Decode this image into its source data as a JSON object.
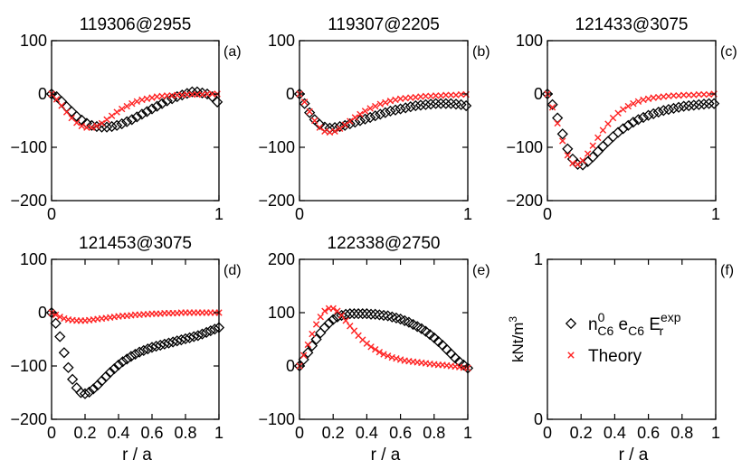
{
  "chart_data": [
    {
      "panel_label": "(a)",
      "title": "119306@2955",
      "type": "scatter",
      "xlim": [
        0,
        1
      ],
      "ylim": [
        -200,
        100
      ],
      "xticks": [
        0,
        1
      ],
      "xtick_labels": [
        "0",
        "1"
      ],
      "yticks": [
        100,
        0,
        -100,
        -200
      ],
      "ytick_labels": [
        "100",
        "0",
        "−100",
        "−200"
      ],
      "xlabel": "",
      "ylabel": "",
      "series": [
        {
          "name": "",
          "marker": "diamond",
          "color": "#000000",
          "x": [
            0,
            0.03,
            0.06,
            0.09,
            0.12,
            0.15,
            0.18,
            0.21,
            0.24,
            0.27,
            0.3,
            0.33,
            0.36,
            0.39,
            0.42,
            0.45,
            0.48,
            0.51,
            0.54,
            0.57,
            0.6,
            0.63,
            0.66,
            0.69,
            0.72,
            0.75,
            0.78,
            0.81,
            0.84,
            0.87,
            0.9,
            0.93,
            0.96,
            0.99
          ],
          "y": [
            0,
            -5,
            -14,
            -24,
            -33,
            -42,
            -49,
            -55,
            -59,
            -61,
            -62,
            -62,
            -61,
            -59,
            -56,
            -52,
            -48,
            -43,
            -38,
            -33,
            -28,
            -23,
            -18,
            -13,
            -9,
            -5,
            -2,
            1,
            4,
            4,
            2,
            0,
            -5,
            -15
          ]
        },
        {
          "name": "",
          "marker": "x",
          "color": "#ff2222",
          "x": [
            0,
            0.03,
            0.06,
            0.09,
            0.12,
            0.15,
            0.18,
            0.21,
            0.24,
            0.27,
            0.3,
            0.33,
            0.36,
            0.39,
            0.42,
            0.45,
            0.48,
            0.51,
            0.54,
            0.57,
            0.6,
            0.63,
            0.66,
            0.69,
            0.72,
            0.75,
            0.78,
            0.81,
            0.84,
            0.87,
            0.9,
            0.93,
            0.96,
            0.99
          ],
          "y": [
            0,
            -10,
            -22,
            -34,
            -45,
            -54,
            -60,
            -63,
            -63,
            -60,
            -55,
            -48,
            -41,
            -34,
            -28,
            -23,
            -18,
            -14,
            -11,
            -9,
            -7,
            -5,
            -4,
            -3,
            -3,
            -2,
            -2,
            -1,
            -1,
            -1,
            -1,
            0,
            0,
            0
          ]
        }
      ]
    },
    {
      "panel_label": "(b)",
      "title": "119307@2205",
      "type": "scatter",
      "xlim": [
        0,
        1
      ],
      "ylim": [
        -200,
        100
      ],
      "xticks": [
        0,
        1
      ],
      "xtick_labels": [
        "0",
        "1"
      ],
      "yticks": [
        100,
        0,
        -100,
        -200
      ],
      "ytick_labels": [
        "100",
        "0",
        "−100",
        "−200"
      ],
      "xlabel": "",
      "ylabel": "",
      "series": [
        {
          "name": "",
          "marker": "diamond",
          "color": "#000000",
          "x": [
            0,
            0.03,
            0.06,
            0.09,
            0.12,
            0.15,
            0.18,
            0.21,
            0.24,
            0.27,
            0.3,
            0.33,
            0.36,
            0.39,
            0.42,
            0.45,
            0.48,
            0.51,
            0.54,
            0.57,
            0.6,
            0.63,
            0.66,
            0.69,
            0.72,
            0.75,
            0.78,
            0.81,
            0.84,
            0.87,
            0.9,
            0.93,
            0.96,
            0.99
          ],
          "y": [
            0,
            -18,
            -35,
            -48,
            -57,
            -62,
            -64,
            -63,
            -61,
            -59,
            -56,
            -53,
            -50,
            -47,
            -44,
            -41,
            -38,
            -35,
            -32,
            -30,
            -28,
            -26,
            -24,
            -22,
            -21,
            -20,
            -19,
            -18,
            -18,
            -18,
            -18,
            -19,
            -20,
            -22
          ]
        },
        {
          "name": "",
          "marker": "x",
          "color": "#ff2222",
          "x": [
            0,
            0.03,
            0.06,
            0.09,
            0.12,
            0.15,
            0.18,
            0.21,
            0.24,
            0.27,
            0.3,
            0.33,
            0.36,
            0.39,
            0.42,
            0.45,
            0.48,
            0.51,
            0.54,
            0.57,
            0.6,
            0.63,
            0.66,
            0.69,
            0.72,
            0.75,
            0.78,
            0.81,
            0.84,
            0.87,
            0.9,
            0.93,
            0.96,
            0.99
          ],
          "y": [
            0,
            -15,
            -33,
            -50,
            -63,
            -70,
            -72,
            -70,
            -65,
            -58,
            -51,
            -44,
            -38,
            -32,
            -27,
            -23,
            -19,
            -16,
            -13,
            -11,
            -9,
            -8,
            -7,
            -6,
            -5,
            -4,
            -4,
            -3,
            -3,
            -2,
            -2,
            -2,
            -1,
            -1
          ]
        }
      ]
    },
    {
      "panel_label": "(c)",
      "title": "121433@3075",
      "type": "scatter",
      "xlim": [
        0,
        1
      ],
      "ylim": [
        -200,
        100
      ],
      "xticks": [
        0,
        1
      ],
      "xtick_labels": [
        "0",
        "1"
      ],
      "yticks": [
        100,
        0,
        -100,
        -200
      ],
      "ytick_labels": [
        "100",
        "0",
        "−100",
        "−200"
      ],
      "xlabel": "",
      "ylabel": "",
      "series": [
        {
          "name": "",
          "marker": "diamond",
          "color": "#000000",
          "x": [
            0,
            0.03,
            0.06,
            0.09,
            0.12,
            0.15,
            0.18,
            0.21,
            0.24,
            0.27,
            0.3,
            0.33,
            0.36,
            0.39,
            0.42,
            0.45,
            0.48,
            0.51,
            0.54,
            0.57,
            0.6,
            0.63,
            0.66,
            0.69,
            0.72,
            0.75,
            0.78,
            0.81,
            0.84,
            0.87,
            0.9,
            0.93,
            0.96,
            0.99
          ],
          "y": [
            0,
            -20,
            -45,
            -75,
            -103,
            -122,
            -132,
            -133,
            -127,
            -118,
            -108,
            -98,
            -89,
            -80,
            -72,
            -65,
            -59,
            -53,
            -48,
            -44,
            -40,
            -37,
            -34,
            -31,
            -29,
            -27,
            -25,
            -23,
            -22,
            -21,
            -20,
            -19,
            -18,
            -18
          ]
        },
        {
          "name": "",
          "marker": "x",
          "color": "#ff2222",
          "x": [
            0,
            0.03,
            0.06,
            0.09,
            0.12,
            0.15,
            0.18,
            0.21,
            0.24,
            0.27,
            0.3,
            0.33,
            0.36,
            0.39,
            0.42,
            0.45,
            0.48,
            0.51,
            0.54,
            0.57,
            0.6,
            0.63,
            0.66,
            0.69,
            0.72,
            0.75,
            0.78,
            0.81,
            0.84,
            0.87,
            0.9,
            0.93,
            0.96,
            0.99
          ],
          "y": [
            0,
            -25,
            -55,
            -88,
            -115,
            -130,
            -132,
            -125,
            -112,
            -97,
            -82,
            -68,
            -56,
            -45,
            -36,
            -29,
            -23,
            -18,
            -14,
            -11,
            -9,
            -7,
            -6,
            -5,
            -4,
            -3,
            -3,
            -2,
            -2,
            -2,
            -1,
            -1,
            -1,
            0
          ]
        }
      ]
    },
    {
      "panel_label": "(d)",
      "title": "121453@3075",
      "type": "scatter",
      "xlim": [
        0,
        1
      ],
      "ylim": [
        -200,
        100
      ],
      "xticks": [
        0,
        0.2,
        0.4,
        0.6,
        0.8,
        1
      ],
      "xtick_labels": [
        "0",
        "0.2",
        "0.4",
        "0.6",
        "0.8",
        "1"
      ],
      "yticks": [
        100,
        0,
        -100,
        -200
      ],
      "ytick_labels": [
        "100",
        "0",
        "−100",
        "−200"
      ],
      "xlabel": "r / a",
      "ylabel": "",
      "series": [
        {
          "name": "",
          "marker": "diamond",
          "color": "#000000",
          "x": [
            0,
            0.025,
            0.05,
            0.075,
            0.1,
            0.125,
            0.15,
            0.175,
            0.2,
            0.225,
            0.25,
            0.275,
            0.3,
            0.325,
            0.35,
            0.375,
            0.4,
            0.425,
            0.45,
            0.475,
            0.5,
            0.525,
            0.55,
            0.575,
            0.6,
            0.625,
            0.65,
            0.675,
            0.7,
            0.725,
            0.75,
            0.775,
            0.8,
            0.825,
            0.85,
            0.875,
            0.9,
            0.925,
            0.95,
            0.975,
            1.0
          ],
          "y": [
            0,
            -20,
            -45,
            -75,
            -103,
            -125,
            -141,
            -150,
            -152,
            -149,
            -143,
            -136,
            -128,
            -120,
            -112,
            -105,
            -98,
            -92,
            -87,
            -82,
            -78,
            -74,
            -71,
            -68,
            -65,
            -63,
            -61,
            -59,
            -57,
            -55,
            -53,
            -51,
            -49,
            -47,
            -45,
            -43,
            -40,
            -37,
            -34,
            -31,
            -28
          ]
        },
        {
          "name": "",
          "marker": "x",
          "color": "#ff2222",
          "x": [
            0,
            0.025,
            0.05,
            0.075,
            0.1,
            0.125,
            0.15,
            0.175,
            0.2,
            0.225,
            0.25,
            0.275,
            0.3,
            0.325,
            0.35,
            0.375,
            0.4,
            0.425,
            0.45,
            0.475,
            0.5,
            0.525,
            0.55,
            0.575,
            0.6,
            0.625,
            0.65,
            0.675,
            0.7,
            0.725,
            0.75,
            0.775,
            0.8,
            0.825,
            0.85,
            0.875,
            0.9,
            0.925,
            0.95,
            0.975,
            1.0
          ],
          "y": [
            0,
            -4,
            -8,
            -11,
            -13,
            -14,
            -15,
            -15,
            -15,
            -14,
            -13,
            -12,
            -11,
            -10,
            -9,
            -8,
            -7,
            -6,
            -6,
            -5,
            -4,
            -4,
            -3,
            -3,
            -2,
            -2,
            -2,
            -1,
            -1,
            -1,
            -1,
            0,
            0,
            0,
            0,
            0,
            0,
            0,
            0,
            0,
            0
          ]
        }
      ]
    },
    {
      "panel_label": "(e)",
      "title": "122338@2750",
      "type": "scatter",
      "xlim": [
        0,
        1
      ],
      "ylim": [
        -100,
        200
      ],
      "xticks": [
        0,
        0.2,
        0.4,
        0.6,
        0.8,
        1
      ],
      "xtick_labels": [
        "0",
        "0.2",
        "0.4",
        "0.6",
        "0.8",
        "1"
      ],
      "yticks": [
        200,
        100,
        0,
        -100
      ],
      "ytick_labels": [
        "200",
        "100",
        "0",
        "−100"
      ],
      "xlabel": "r / a",
      "ylabel": "",
      "series": [
        {
          "name": "",
          "marker": "diamond",
          "color": "#000000",
          "x": [
            0,
            0.025,
            0.05,
            0.075,
            0.1,
            0.125,
            0.15,
            0.175,
            0.2,
            0.225,
            0.25,
            0.275,
            0.3,
            0.325,
            0.35,
            0.375,
            0.4,
            0.425,
            0.45,
            0.475,
            0.5,
            0.525,
            0.55,
            0.575,
            0.6,
            0.625,
            0.65,
            0.675,
            0.7,
            0.725,
            0.75,
            0.775,
            0.8,
            0.825,
            0.85,
            0.875,
            0.9,
            0.925,
            0.95,
            0.975,
            1.0
          ],
          "y": [
            0,
            12,
            25,
            38,
            50,
            62,
            72,
            80,
            87,
            92,
            95,
            97,
            98,
            98,
            98,
            98,
            98,
            97,
            97,
            96,
            95,
            94,
            92,
            90,
            88,
            85,
            82,
            78,
            74,
            70,
            65,
            59,
            53,
            46,
            39,
            31,
            23,
            15,
            8,
            2,
            -4
          ]
        },
        {
          "name": "",
          "marker": "x",
          "color": "#ff2222",
          "x": [
            0,
            0.025,
            0.05,
            0.075,
            0.1,
            0.125,
            0.15,
            0.175,
            0.2,
            0.225,
            0.25,
            0.275,
            0.3,
            0.325,
            0.35,
            0.375,
            0.4,
            0.425,
            0.45,
            0.475,
            0.5,
            0.525,
            0.55,
            0.575,
            0.6,
            0.625,
            0.65,
            0.675,
            0.7,
            0.725,
            0.75,
            0.775,
            0.8,
            0.825,
            0.85,
            0.875,
            0.9,
            0.925,
            0.95,
            0.975,
            1.0
          ],
          "y": [
            0,
            20,
            40,
            60,
            78,
            92,
            103,
            108,
            108,
            103,
            95,
            85,
            75,
            66,
            57,
            49,
            42,
            36,
            31,
            26,
            22,
            19,
            16,
            14,
            12,
            10,
            9,
            8,
            7,
            6,
            5,
            4,
            3,
            2,
            2,
            1,
            0,
            -1,
            -2,
            -3,
            -4
          ]
        }
      ]
    },
    {
      "panel_label": "(f)",
      "title": "",
      "type": "scatter",
      "xlim": [
        0,
        1
      ],
      "ylim": [
        0,
        1
      ],
      "xticks": [
        0,
        0.2,
        0.4,
        0.6,
        0.8,
        1
      ],
      "xtick_labels": [
        "0",
        "0.2",
        "0.4",
        "0.6",
        "0.8",
        "1"
      ],
      "yticks": [
        1,
        0
      ],
      "ytick_labels": [
        "1",
        "0"
      ],
      "xlabel": "r / a",
      "ylabel": "kNt/m3",
      "legend": {
        "placement": "center",
        "entries": [
          {
            "marker": "diamond",
            "color": "#000000",
            "label": "n",
            "sup": "0",
            "sub": "C6",
            "label2": " e",
            "sub2": "C6",
            "label3": " E",
            "sub3": "r",
            "sup3": "exp"
          },
          {
            "marker": "x",
            "color": "#ff2222",
            "label": "Theory"
          }
        ]
      },
      "series": []
    }
  ]
}
